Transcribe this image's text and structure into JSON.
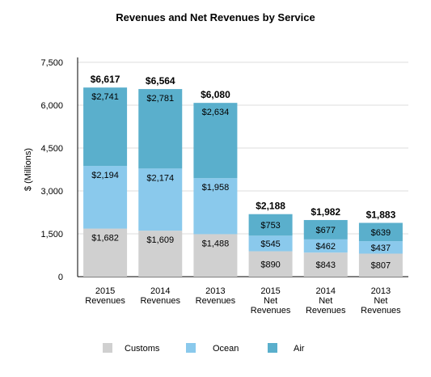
{
  "colors": {
    "Customs": "#d0d0d0",
    "Ocean": "#8ac9ec",
    "Air": "#5aafcc",
    "grid": "#dddddd",
    "axis": "#000000"
  },
  "chart_data": {
    "type": "bar",
    "stacked": true,
    "title": "Revenues and Net Revenues by Service",
    "ylabel": "$ (Millions)",
    "ylim": [
      0,
      7500
    ],
    "yticks": [
      0,
      1500,
      3000,
      4500,
      6000,
      7500
    ],
    "ytick_labels": [
      "0",
      "1,500",
      "3,000",
      "4,500",
      "6,000",
      "7,500"
    ],
    "grid": true,
    "legend": "bottom",
    "categories": [
      [
        "2015",
        "Revenues"
      ],
      [
        "2014",
        "Revenues"
      ],
      [
        "2013",
        "Revenues"
      ],
      [
        "2015",
        "Net",
        "Revenues"
      ],
      [
        "2014",
        "Net",
        "Revenues"
      ],
      [
        "2013",
        "Net",
        "Revenues"
      ]
    ],
    "series": [
      {
        "name": "Customs",
        "values": [
          1682,
          1609,
          1488,
          890,
          843,
          807
        ],
        "labels": [
          "$1,682",
          "$1,609",
          "$1,488",
          "$890",
          "$843",
          "$807"
        ]
      },
      {
        "name": "Ocean",
        "values": [
          2194,
          2174,
          1958,
          545,
          462,
          437
        ],
        "labels": [
          "$2,194",
          "$2,174",
          "$1,958",
          "$545",
          "$462",
          "$437"
        ]
      },
      {
        "name": "Air",
        "values": [
          2741,
          2781,
          2634,
          753,
          677,
          639
        ],
        "labels": [
          "$2,741",
          "$2,781",
          "$2,634",
          "$753",
          "$677",
          "$639"
        ]
      }
    ],
    "totals": [
      6617,
      6564,
      6080,
      2188,
      1982,
      1883
    ],
    "total_labels": [
      "$6,617",
      "$6,564",
      "$6,080",
      "$2,188",
      "$1,982",
      "$1,883"
    ]
  }
}
